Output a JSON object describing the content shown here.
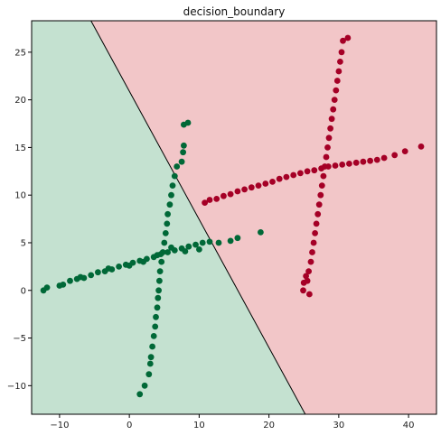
{
  "chart_data": {
    "type": "scatter",
    "title": "decision_boundary",
    "xlabel": "",
    "ylabel": "",
    "xlim": [
      -14,
      44
    ],
    "ylim": [
      -13,
      28.3
    ],
    "x_ticks": [
      -10,
      0,
      10,
      20,
      30,
      40
    ],
    "y_ticks": [
      -10,
      -5,
      0,
      5,
      10,
      15,
      20,
      25
    ],
    "x_tick_labels": [
      "−10",
      "0",
      "10",
      "20",
      "30",
      "40"
    ],
    "y_tick_labels": [
      "−10",
      "−5",
      "0",
      "5",
      "10",
      "15",
      "20",
      "25"
    ],
    "grid": false,
    "decision_boundary": {
      "points": [
        [
          -5.5,
          28.3
        ],
        [
          25.2,
          -13
        ]
      ],
      "color": "#000000"
    },
    "regions": [
      {
        "side": "left",
        "color": "#c4e1d0"
      },
      {
        "side": "right",
        "color": "#f2c6c8"
      }
    ],
    "series": [
      {
        "color": "#006837",
        "points": [
          [
            -12.3,
            0.0
          ],
          [
            -11.8,
            0.3
          ],
          [
            -9.5,
            0.6
          ],
          [
            -8.5,
            1.0
          ],
          [
            -7.5,
            1.2
          ],
          [
            -6.5,
            1.3
          ],
          [
            -5.5,
            1.6
          ],
          [
            -4.5,
            1.9
          ],
          [
            -3.5,
            2.0
          ],
          [
            -2.5,
            2.2
          ],
          [
            -1.5,
            2.5
          ],
          [
            -0.5,
            2.7
          ],
          [
            0.5,
            2.9
          ],
          [
            1.5,
            3.1
          ],
          [
            2.5,
            3.3
          ],
          [
            3.5,
            3.5
          ],
          [
            4.5,
            3.8
          ],
          [
            5.5,
            4.0
          ],
          [
            6.5,
            4.2
          ],
          [
            7.5,
            4.4
          ],
          [
            8.5,
            4.6
          ],
          [
            9.5,
            4.8
          ],
          [
            10.5,
            5.0
          ],
          [
            11.5,
            5.1
          ],
          [
            12.8,
            5.0
          ],
          [
            14.5,
            5.2
          ],
          [
            15.5,
            5.5
          ],
          [
            18.8,
            6.1
          ],
          [
            -10.0,
            0.5
          ],
          [
            -7.0,
            1.4
          ],
          [
            -3.0,
            2.3
          ],
          [
            0.0,
            2.6
          ],
          [
            2.0,
            3.0
          ],
          [
            4.0,
            3.7
          ],
          [
            6.0,
            4.5
          ],
          [
            8.0,
            4.1
          ],
          [
            10.0,
            4.3
          ],
          [
            1.5,
            -10.9
          ],
          [
            2.2,
            -10.0
          ],
          [
            2.8,
            -8.8
          ],
          [
            3.0,
            -7.7
          ],
          [
            3.1,
            -7.0
          ],
          [
            3.3,
            -5.9
          ],
          [
            3.5,
            -4.8
          ],
          [
            3.7,
            -3.8
          ],
          [
            3.8,
            -2.8
          ],
          [
            4.0,
            -1.8
          ],
          [
            4.1,
            -0.8
          ],
          [
            4.2,
            0.0
          ],
          [
            4.3,
            1.0
          ],
          [
            4.4,
            2.0
          ],
          [
            4.6,
            3.0
          ],
          [
            4.8,
            4.0
          ],
          [
            5.0,
            5.0
          ],
          [
            5.2,
            6.0
          ],
          [
            5.4,
            7.0
          ],
          [
            5.5,
            8.0
          ],
          [
            5.8,
            9.0
          ],
          [
            6.0,
            10.0
          ],
          [
            6.2,
            11.0
          ],
          [
            6.5,
            12.0
          ],
          [
            6.8,
            13.0
          ],
          [
            7.5,
            13.5
          ],
          [
            7.7,
            14.5
          ],
          [
            7.8,
            15.2
          ],
          [
            7.8,
            17.4
          ],
          [
            8.4,
            17.6
          ]
        ]
      },
      {
        "color": "#a50026",
        "points": [
          [
            10.8,
            9.2
          ],
          [
            11.5,
            9.5
          ],
          [
            12.5,
            9.6
          ],
          [
            13.5,
            9.9
          ],
          [
            14.5,
            10.1
          ],
          [
            15.5,
            10.4
          ],
          [
            16.5,
            10.6
          ],
          [
            17.5,
            10.8
          ],
          [
            18.5,
            11.0
          ],
          [
            19.5,
            11.2
          ],
          [
            20.5,
            11.4
          ],
          [
            21.5,
            11.7
          ],
          [
            22.5,
            11.9
          ],
          [
            23.5,
            12.1
          ],
          [
            24.5,
            12.3
          ],
          [
            25.5,
            12.5
          ],
          [
            26.5,
            12.6
          ],
          [
            27.5,
            12.8
          ],
          [
            28.5,
            13.0
          ],
          [
            29.5,
            13.1
          ],
          [
            30.5,
            13.2
          ],
          [
            31.5,
            13.3
          ],
          [
            32.5,
            13.4
          ],
          [
            33.5,
            13.5
          ],
          [
            34.5,
            13.6
          ],
          [
            35.5,
            13.7
          ],
          [
            36.5,
            13.9
          ],
          [
            38.0,
            14.2
          ],
          [
            39.5,
            14.6
          ],
          [
            41.8,
            15.1
          ],
          [
            24.9,
            0.0
          ],
          [
            25.5,
            1.0
          ],
          [
            25.7,
            2.0
          ],
          [
            26.0,
            3.0
          ],
          [
            26.2,
            4.0
          ],
          [
            26.4,
            5.0
          ],
          [
            26.6,
            6.0
          ],
          [
            26.8,
            7.0
          ],
          [
            27.0,
            8.0
          ],
          [
            27.2,
            9.0
          ],
          [
            27.4,
            10.0
          ],
          [
            27.6,
            11.0
          ],
          [
            27.8,
            12.0
          ],
          [
            28.0,
            13.0
          ],
          [
            28.2,
            14.0
          ],
          [
            28.4,
            15.0
          ],
          [
            28.6,
            16.0
          ],
          [
            28.8,
            17.0
          ],
          [
            29.0,
            18.0
          ],
          [
            29.2,
            19.0
          ],
          [
            29.4,
            20.0
          ],
          [
            29.6,
            21.0
          ],
          [
            29.8,
            22.0
          ],
          [
            30.0,
            23.0
          ],
          [
            30.2,
            24.0
          ],
          [
            30.4,
            25.0
          ],
          [
            30.6,
            26.2
          ],
          [
            31.3,
            26.5
          ],
          [
            25.3,
            1.5
          ],
          [
            25.0,
            0.8
          ],
          [
            25.8,
            -0.4
          ]
        ]
      }
    ]
  }
}
